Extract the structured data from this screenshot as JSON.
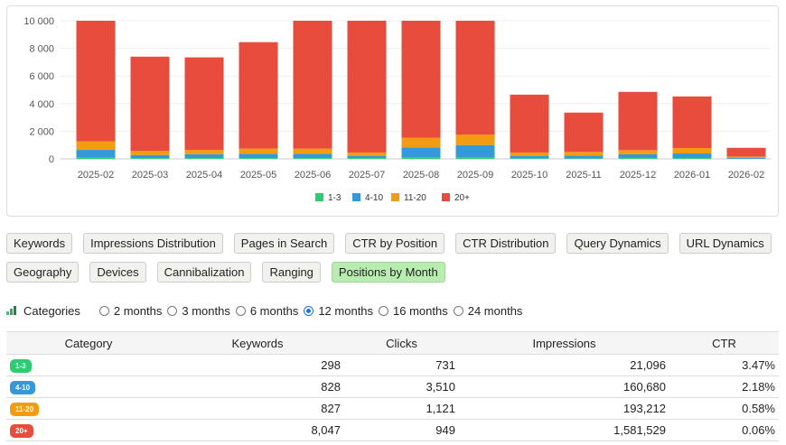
{
  "chart_data": {
    "type": "bar",
    "stacked": true,
    "categories": [
      "2025-02",
      "2025-03",
      "2025-04",
      "2025-05",
      "2025-06",
      "2025-07",
      "2025-08",
      "2025-09",
      "2025-10",
      "2025-11",
      "2025-12",
      "2026-01",
      "2026-02"
    ],
    "series": [
      {
        "name": "1-3",
        "color": "#2ecc71",
        "values": [
          130,
          60,
          60,
          60,
          60,
          60,
          110,
          110,
          40,
          40,
          60,
          60,
          10
        ]
      },
      {
        "name": "4-10",
        "color": "#3498db",
        "values": [
          520,
          220,
          280,
          310,
          310,
          160,
          720,
          890,
          180,
          200,
          270,
          330,
          55
        ]
      },
      {
        "name": "11-20",
        "color": "#f39c12",
        "values": [
          610,
          290,
          310,
          370,
          370,
          240,
          690,
          760,
          240,
          260,
          300,
          390,
          105
        ]
      },
      {
        "name": "20+",
        "color": "#e74c3c",
        "values": [
          8740,
          6830,
          6700,
          7710,
          9260,
          9540,
          8480,
          8240,
          4190,
          2850,
          4220,
          3740,
          630
        ]
      }
    ],
    "ylim": [
      0,
      10000
    ],
    "yticks": [
      "0",
      "2 000",
      "4 000",
      "6 000",
      "8 000",
      "10 000"
    ],
    "grid": true,
    "legend": "bottom"
  },
  "tabs_row1": [
    "Keywords",
    "Impressions Distribution",
    "Pages in Search",
    "CTR by Position",
    "CTR Distribution",
    "Query Dynamics",
    "URL Dynamics"
  ],
  "tabs_row2": [
    "Geography",
    "Devices",
    "Cannibalization",
    "Ranging",
    "Positions by Month"
  ],
  "active_tab": "Positions by Month",
  "options": {
    "categories_label": "Categories",
    "periods": [
      "2 months",
      "3 months",
      "6 months",
      "12 months",
      "16 months",
      "24 months"
    ],
    "selected": "12 months"
  },
  "table": {
    "headers": [
      "Category",
      "Keywords",
      "Clicks",
      "Impressions",
      "CTR"
    ],
    "rows": [
      {
        "category": "1-3",
        "color": "#2ecc71",
        "keywords": "298",
        "clicks": "731",
        "impressions": "21,096",
        "ctr": "3.47%"
      },
      {
        "category": "4-10",
        "color": "#3498db",
        "keywords": "828",
        "clicks": "3,510",
        "impressions": "160,680",
        "ctr": "2.18%"
      },
      {
        "category": "11-20",
        "color": "#f39c12",
        "keywords": "827",
        "clicks": "1,121",
        "impressions": "193,212",
        "ctr": "0.58%"
      },
      {
        "category": "20+",
        "color": "#e74c3c",
        "keywords": "8,047",
        "clicks": "949",
        "impressions": "1,581,529",
        "ctr": "0.06%"
      }
    ]
  }
}
